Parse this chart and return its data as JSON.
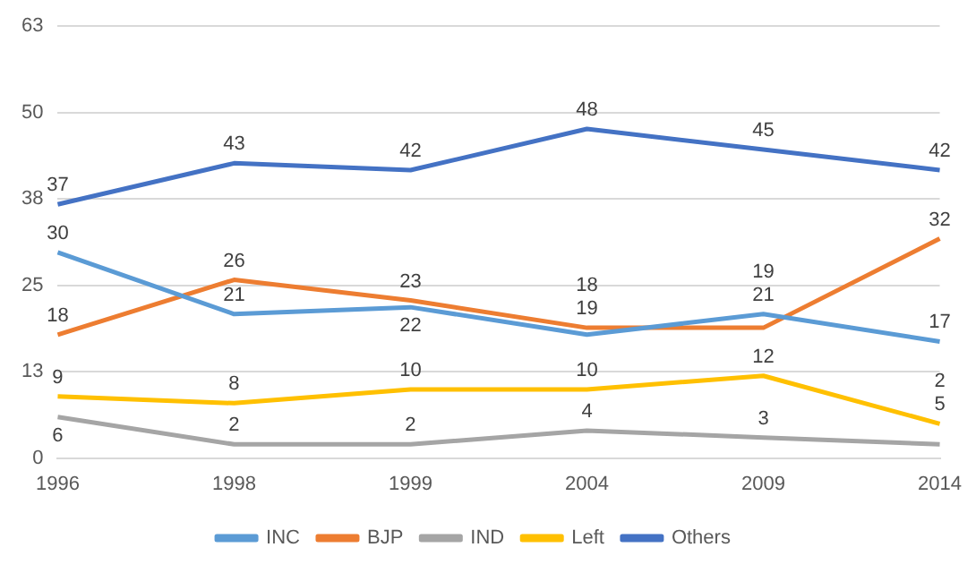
{
  "chart_data": {
    "type": "line",
    "categories": [
      "1996",
      "1998",
      "1999",
      "2004",
      "2009",
      "2014"
    ],
    "series": [
      {
        "name": "INC",
        "color": "#5b9bd5",
        "values": [
          30,
          21,
          22,
          18,
          21,
          17
        ]
      },
      {
        "name": "BJP",
        "color": "#ed7d31",
        "values": [
          18,
          26,
          23,
          19,
          19,
          32
        ]
      },
      {
        "name": "IND",
        "color": "#a5a5a5",
        "values": [
          6,
          2,
          2,
          4,
          3,
          2
        ]
      },
      {
        "name": "Left",
        "color": "#ffc000",
        "values": [
          9,
          8,
          10,
          10,
          12,
          5
        ]
      },
      {
        "name": "Others",
        "color": "#4472c4",
        "values": [
          37,
          43,
          42,
          48,
          45,
          42
        ]
      }
    ],
    "ylim": [
      0,
      63
    ],
    "yticks": [
      0,
      {
        "value": 12.6,
        "label": "13"
      },
      {
        "value": 25.2,
        "label": "25"
      },
      {
        "value": 37.8,
        "label": "38"
      },
      {
        "value": 50.4,
        "label": "50"
      },
      63
    ],
    "grid": "y",
    "legend": "bottom",
    "marker": "none",
    "line_style": "solid",
    "data_labels": true
  }
}
